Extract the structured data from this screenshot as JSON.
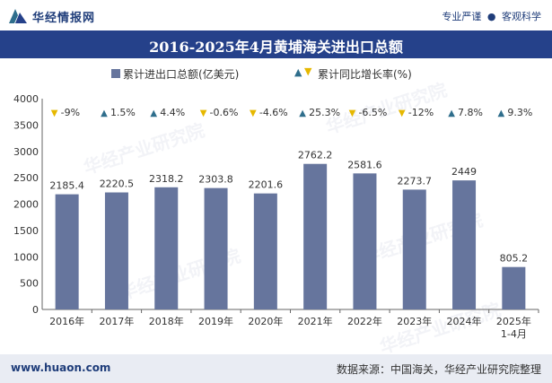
{
  "header": {
    "brand": "华经情报网",
    "tagline_left": "专业严谨",
    "tagline_right": "客观科学"
  },
  "title": "2016-2025年4月黄埔海关进出口总额",
  "legend": {
    "bar_label": "累计进出口总额(亿美元)",
    "growth_label": "累计同比增长率(%)"
  },
  "footer": {
    "site": "www.huaon.com",
    "source": "数据来源：中国海关，华经产业研究院整理"
  },
  "watermark": "华经产业研究院",
  "colors": {
    "bar": "#66759d",
    "title_bg": "#25418a",
    "up_arrow": "#2f6e8c",
    "down_arrow": "#e6b800"
  },
  "chart_data": {
    "type": "bar",
    "categories": [
      "2016年",
      "2017年",
      "2018年",
      "2019年",
      "2020年",
      "2021年",
      "2022年",
      "2023年",
      "2024年",
      "2025年\n1-4月"
    ],
    "series": [
      {
        "name": "累计进出口总额(亿美元)",
        "values": [
          2185.4,
          2220.5,
          2318.2,
          2303.8,
          2201.6,
          2762.2,
          2581.6,
          2273.7,
          2449,
          805.2
        ],
        "labels": [
          "2185.4",
          "2220.5",
          "2318.2",
          "2303.8",
          "2201.6",
          "2762.2",
          "2581.6",
          "2273.7",
          "2449",
          "805.2"
        ]
      },
      {
        "name": "累计同比增长率(%)",
        "values": [
          -9,
          1.5,
          4.4,
          -0.6,
          -4.6,
          25.3,
          -6.5,
          -12,
          7.8,
          9.3
        ],
        "labels": [
          "-9%",
          "1.5%",
          "4.4%",
          "-0.6%",
          "-4.6%",
          "25.3%",
          "-6.5%",
          "-12%",
          "7.8%",
          "9.3%"
        ]
      }
    ],
    "ylim": [
      0,
      4000
    ],
    "yticks": [
      "0",
      "500",
      "1000",
      "1500",
      "2000",
      "2500",
      "3000",
      "3500",
      "4000"
    ],
    "grid": false,
    "legend_position": "top"
  }
}
